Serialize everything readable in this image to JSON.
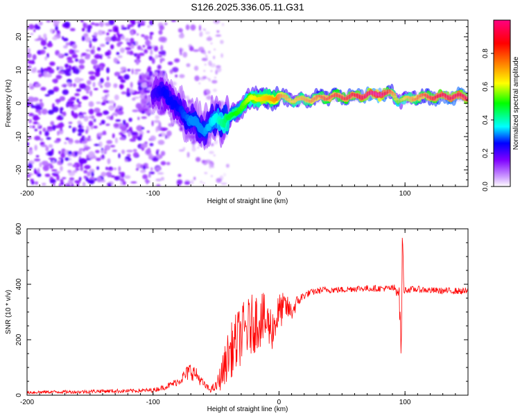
{
  "figure_title": "S126.2025.336.05.11.G31",
  "chart_data": [
    {
      "type": "heatmap",
      "title": "S126.2025.336.05.11.G31",
      "xlabel": "Height of straight line (km)",
      "ylabel": "Frequency (Hz)",
      "xlim": [
        -200,
        150
      ],
      "ylim": [
        -25,
        25
      ],
      "xticks": [
        -200,
        -100,
        0,
        100
      ],
      "yticks": [
        -20,
        -10,
        0,
        10,
        20
      ],
      "colorbar": {
        "label": "Normalized spectral amplitude",
        "range": [
          0,
          1
        ],
        "ticks": [
          0.0,
          0.2,
          0.4,
          0.6,
          0.8
        ],
        "tick_labels": [
          "0.0",
          "0.2",
          "0.4",
          "0.6",
          "0.8"
        ],
        "colormap": [
          "#ffffff",
          "#cc99ff",
          "#7f00ff",
          "#0000ff",
          "#00ffff",
          "#00ff00",
          "#ffff00",
          "#ff7f00",
          "#ff0000",
          "#ff0080"
        ]
      },
      "ridge": {
        "x": [
          -100,
          -90,
          -80,
          -70,
          -60,
          -50,
          -40,
          -30,
          -20,
          -10,
          0,
          10,
          20,
          40,
          60,
          80,
          90,
          95,
          100,
          110,
          130,
          150
        ],
        "freq": [
          3,
          3,
          -2,
          -5,
          -8,
          -5,
          -5,
          -1,
          2,
          1,
          2,
          1,
          1,
          2,
          2,
          3,
          3,
          1,
          1,
          2,
          2,
          2
        ],
        "amplitude": [
          0.2,
          0.25,
          0.25,
          0.3,
          0.3,
          0.35,
          0.45,
          0.5,
          0.6,
          0.65,
          0.7,
          0.6,
          0.65,
          0.75,
          0.8,
          0.95,
          0.7,
          0.5,
          0.6,
          0.7,
          0.85,
          0.85
        ]
      }
    },
    {
      "type": "line",
      "xlabel": "Height of straight line (km)",
      "ylabel": "SNR (10 * v/v)",
      "xlim": [
        -200,
        150
      ],
      "ylim": [
        0,
        600
      ],
      "xticks": [
        -200,
        -100,
        0,
        100
      ],
      "yticks": [
        0,
        200,
        400,
        600
      ],
      "series": [
        {
          "name": "SNR",
          "color": "#ff0000",
          "x": [
            -200,
            -180,
            -160,
            -140,
            -120,
            -100,
            -90,
            -80,
            -75,
            -70,
            -65,
            -60,
            -55,
            -50,
            -45,
            -40,
            -35,
            -30,
            -25,
            -20,
            -15,
            -10,
            -5,
            0,
            5,
            10,
            15,
            20,
            25,
            30,
            35,
            40,
            50,
            60,
            70,
            80,
            90,
            95,
            96,
            97,
            98,
            99,
            100,
            110,
            120,
            130,
            140,
            150
          ],
          "values": [
            10,
            12,
            12,
            15,
            15,
            18,
            30,
            50,
            70,
            90,
            70,
            40,
            20,
            30,
            80,
            150,
            180,
            220,
            240,
            260,
            280,
            260,
            240,
            300,
            320,
            300,
            340,
            360,
            370,
            375,
            380,
            380,
            380,
            385,
            385,
            385,
            385,
            380,
            300,
            140,
            600,
            380,
            380,
            382,
            378,
            376,
            376,
            374
          ],
          "noise_amplitude": [
            6,
            6,
            6,
            7,
            7,
            8,
            10,
            15,
            25,
            35,
            25,
            15,
            10,
            20,
            60,
            90,
            110,
            110,
            110,
            110,
            110,
            90,
            80,
            70,
            50,
            35,
            25,
            15,
            12,
            12,
            12,
            12,
            12,
            12,
            12,
            12,
            12,
            30,
            60,
            40,
            40,
            20,
            12,
            12,
            12,
            12,
            12,
            12
          ]
        }
      ]
    }
  ]
}
